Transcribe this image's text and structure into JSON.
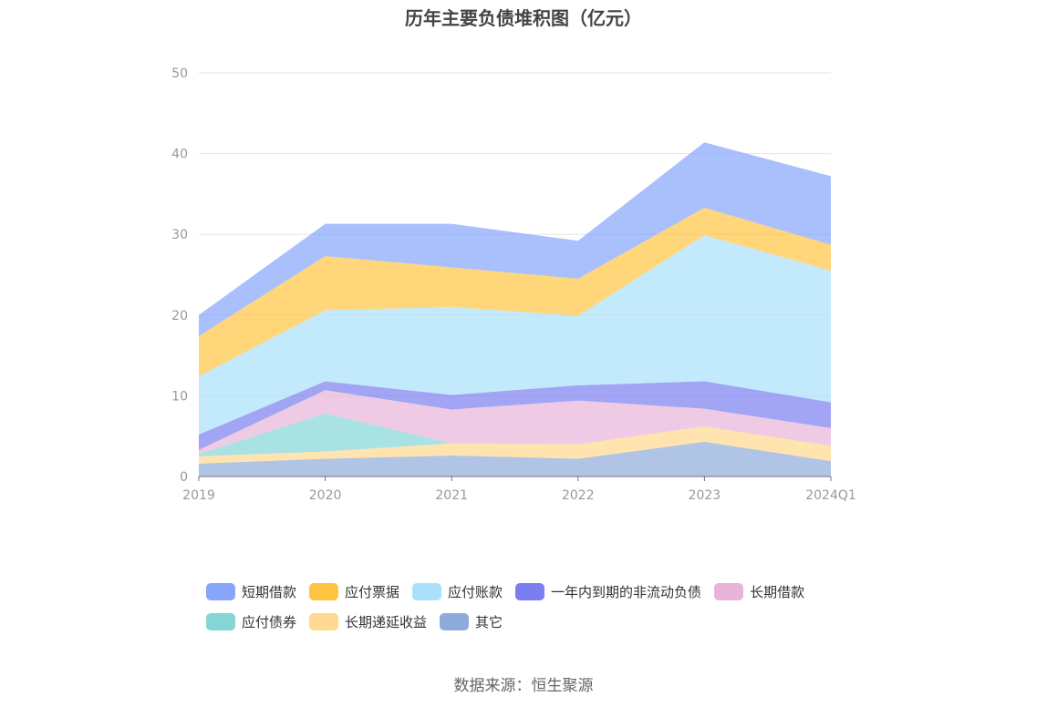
{
  "title": "历年主要负债堆积图（亿元）",
  "source": "数据来源：恒生聚源",
  "chart_data": {
    "type": "area",
    "stacked": true,
    "title": "历年主要负债堆积图（亿元）",
    "x": [
      "2019",
      "2020",
      "2021",
      "2022",
      "2023",
      "2024Q1"
    ],
    "ylim": [
      0,
      50
    ],
    "yticks": [
      "0",
      "10",
      "20",
      "30",
      "40",
      "50"
    ],
    "grid": true,
    "legend_position": "bottom",
    "series": [
      {
        "name": "其它",
        "color": "#8fabdc",
        "values": [
          1.6,
          2.2,
          2.6,
          2.2,
          4.3,
          1.9
        ]
      },
      {
        "name": "长期递延收益",
        "color": "#ffd98f",
        "values": [
          0.9,
          0.9,
          1.5,
          1.8,
          1.9,
          1.9
        ]
      },
      {
        "name": "应付债券",
        "color": "#84d6d6",
        "values": [
          0.3,
          4.7,
          0.0,
          0.0,
          0.0,
          0.0
        ]
      },
      {
        "name": "长期借款",
        "color": "#e8b4d8",
        "values": [
          0.5,
          2.9,
          4.2,
          5.4,
          2.2,
          2.2
        ]
      },
      {
        "name": "一年内到期的非流动负债",
        "color": "#7b7ef0",
        "values": [
          1.9,
          1.1,
          1.8,
          1.9,
          3.4,
          3.2
        ]
      },
      {
        "name": "应付账款",
        "color": "#a9e1fb",
        "values": [
          7.2,
          8.8,
          10.9,
          8.6,
          18.1,
          16.3
        ]
      },
      {
        "name": "应付票据",
        "color": "#ffc542",
        "values": [
          5.0,
          6.7,
          4.9,
          4.6,
          3.4,
          3.2
        ]
      },
      {
        "name": "短期借款",
        "color": "#86a5fb",
        "values": [
          2.6,
          4.0,
          5.4,
          4.7,
          8.1,
          8.5
        ]
      }
    ]
  },
  "legend": [
    {
      "name": "短期借款",
      "color": "#86a5fb"
    },
    {
      "name": "应付票据",
      "color": "#ffc542"
    },
    {
      "name": "应付账款",
      "color": "#a9e1fb"
    },
    {
      "name": "一年内到期的非流动负债",
      "color": "#7b7ef0"
    },
    {
      "name": "长期借款",
      "color": "#e8b4d8"
    },
    {
      "name": "应付债券",
      "color": "#84d6d6"
    },
    {
      "name": "长期递延收益",
      "color": "#ffd98f"
    },
    {
      "name": "其它",
      "color": "#8fabdc"
    }
  ]
}
